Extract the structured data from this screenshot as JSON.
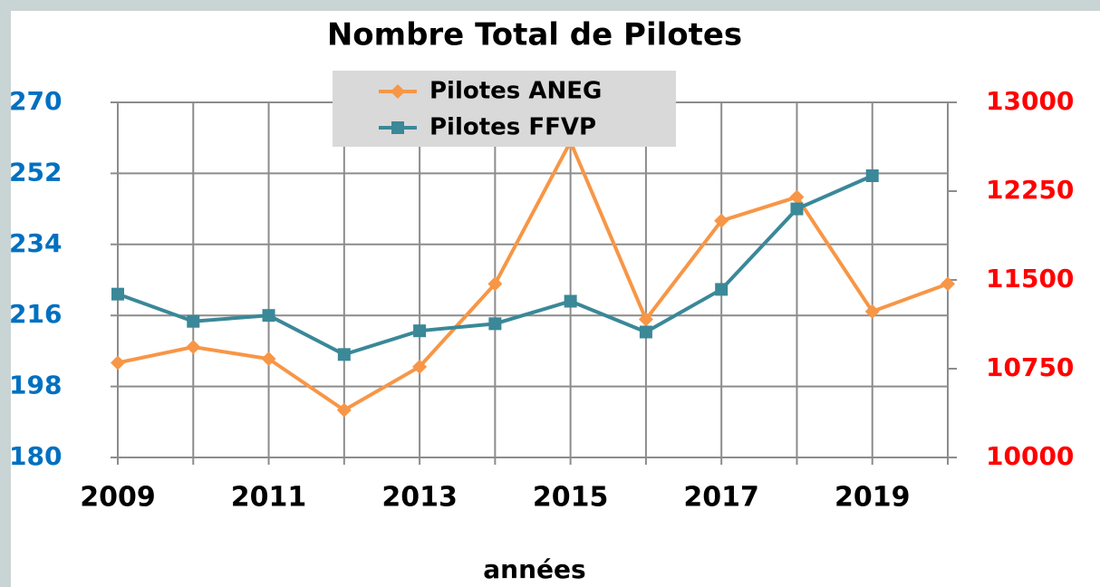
{
  "chart_data": {
    "type": "line",
    "title": "Nombre Total de Pilotes",
    "x_label": "années",
    "categories": [
      "2009",
      null,
      "2011",
      null,
      "2013",
      null,
      "2015",
      null,
      "2017",
      null,
      "2019",
      null
    ],
    "series": [
      {
        "name": "Pilotes ANEG",
        "color": "#f79646",
        "marker": "diamond",
        "values": [
          204,
          208,
          205,
          192,
          203,
          224,
          260,
          215,
          240,
          246,
          217,
          224
        ]
      },
      {
        "name": "Pilotes FFVP",
        "color": "#3a8898",
        "marker": "square",
        "axis": "y2",
        "values": [
          11380,
          11150,
          11200,
          10870,
          11070,
          11130,
          11320,
          11060,
          11420,
          12100,
          12380,
          null
        ]
      }
    ],
    "ylim": [
      180,
      270
    ],
    "yticks": [
      180,
      198,
      216,
      234,
      252,
      270
    ],
    "ytick_color": "#0070c0",
    "y2lim": [
      10000,
      13000
    ],
    "y2ticks": [
      10000,
      10750,
      11500,
      12250,
      13000
    ],
    "y2tick_color": "#ff0000",
    "grid": true,
    "legend": "top"
  }
}
